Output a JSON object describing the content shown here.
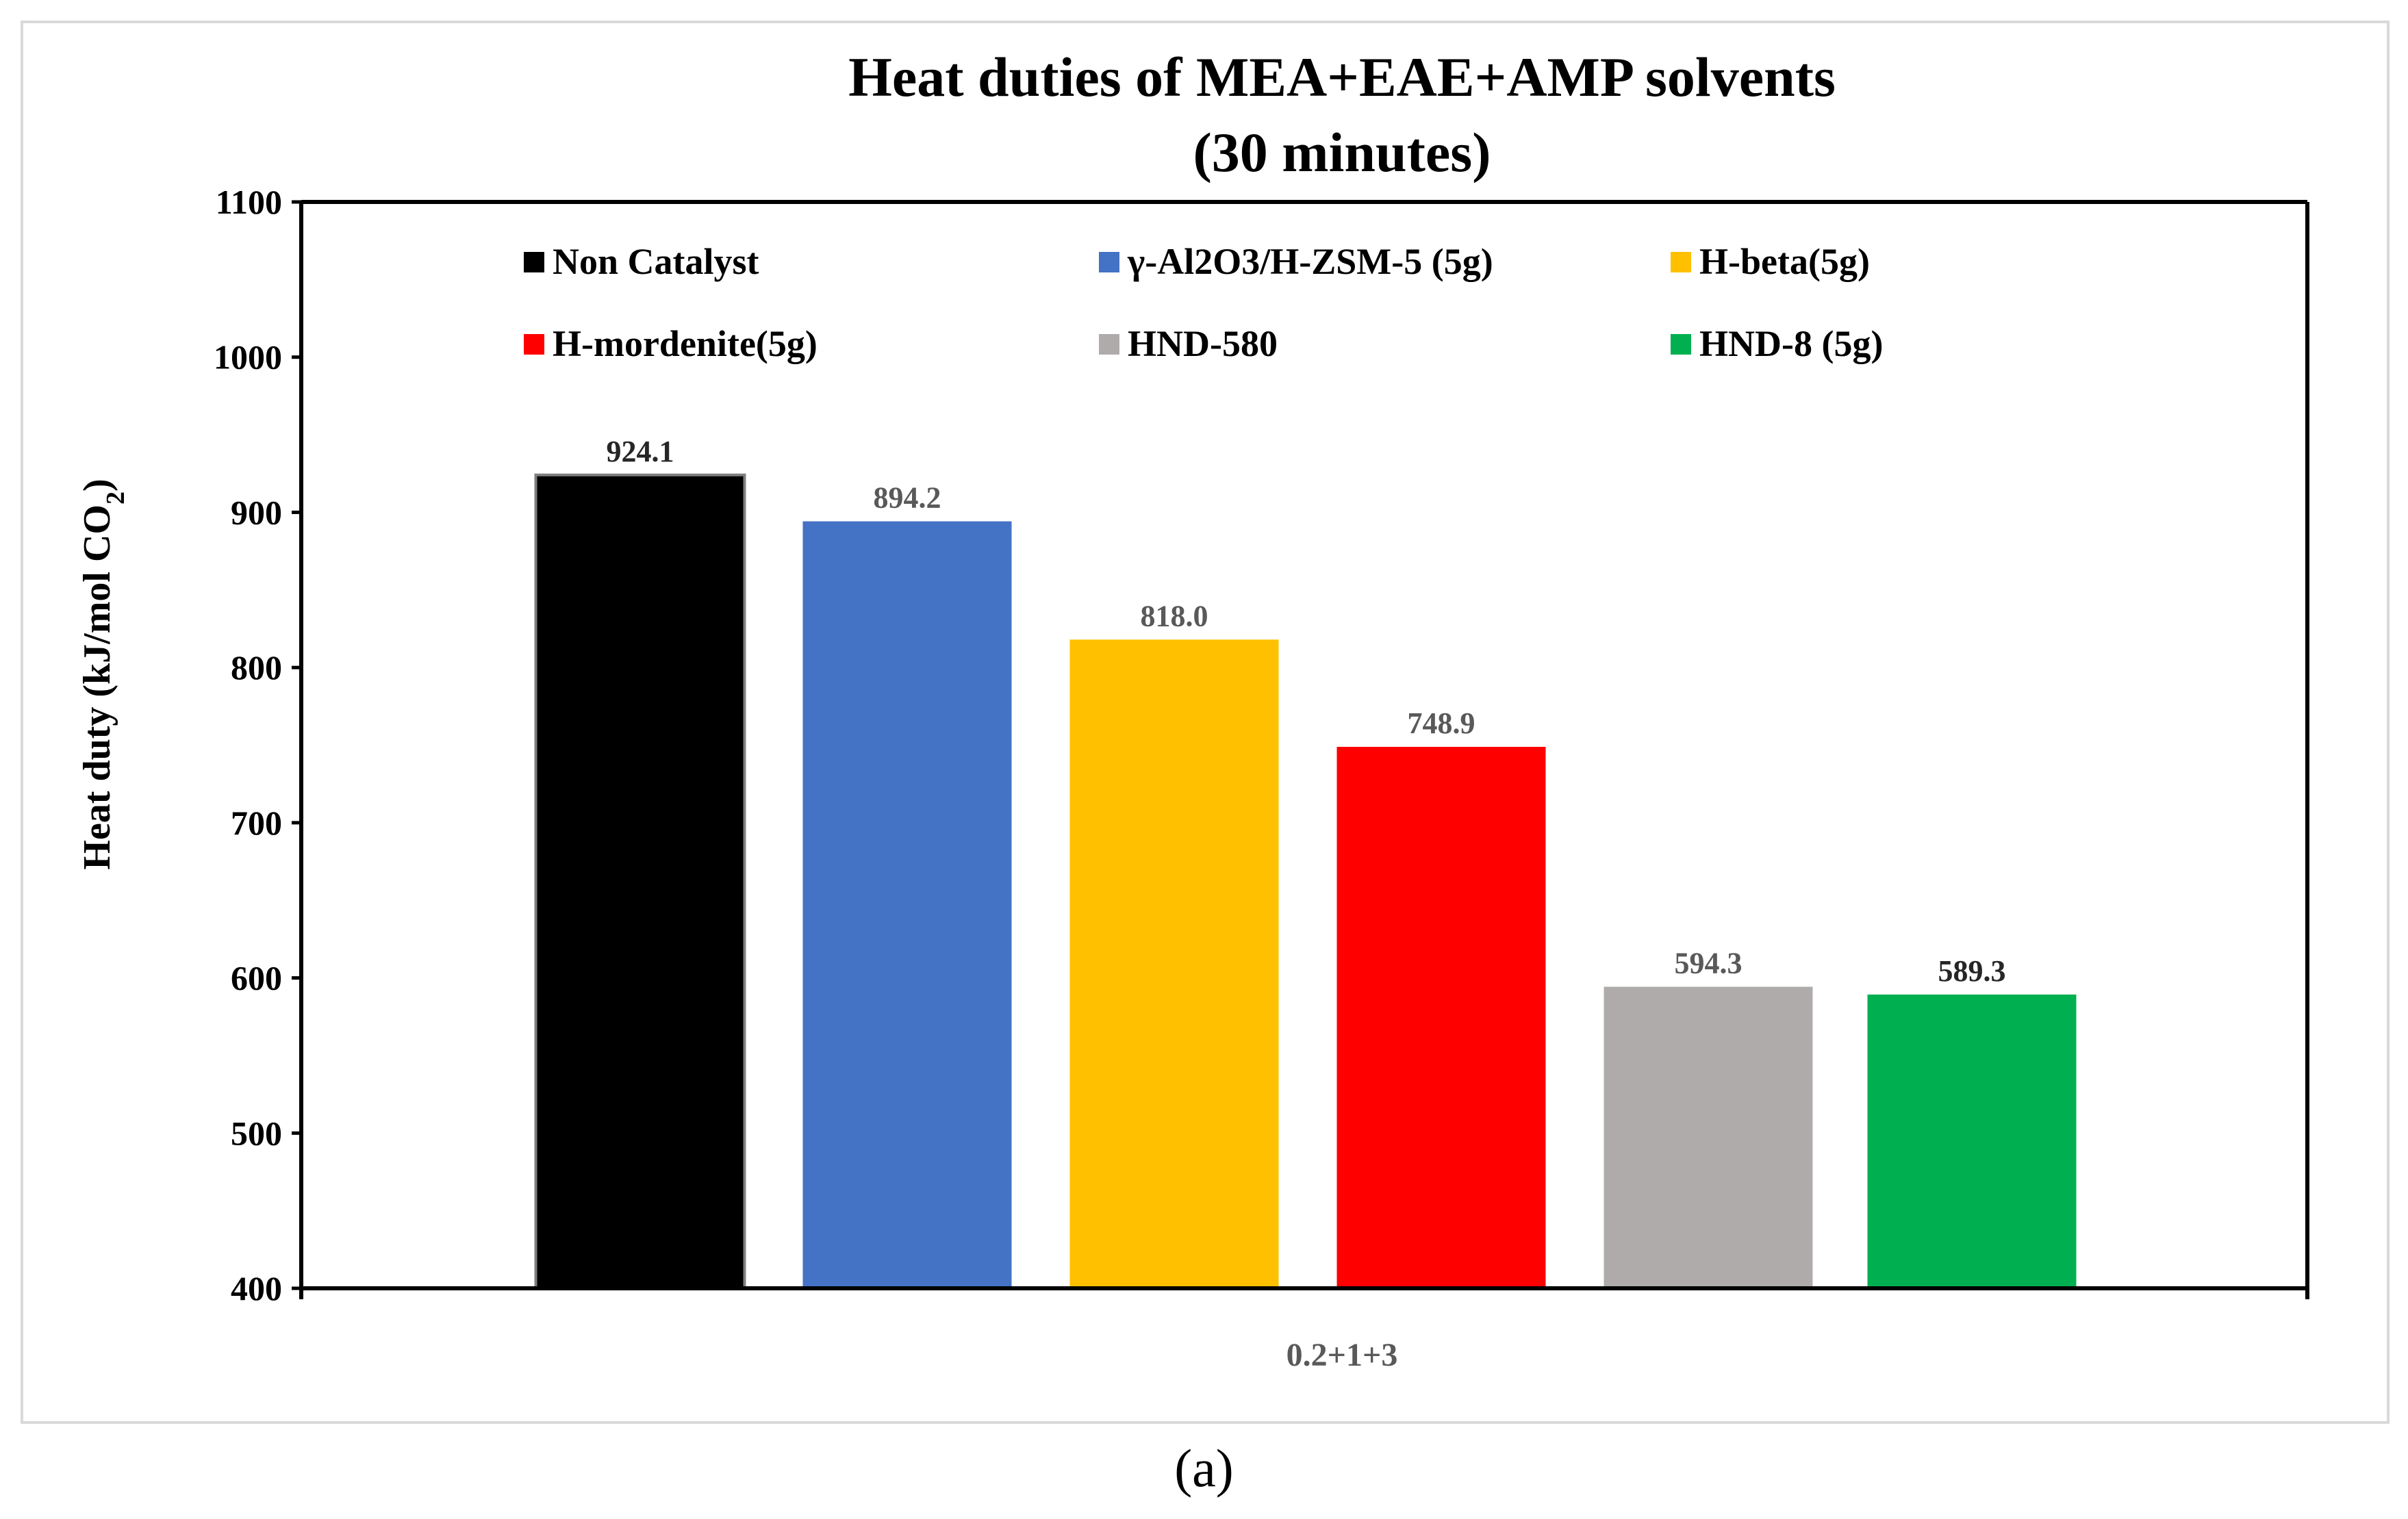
{
  "chart_data": {
    "type": "bar",
    "title": "Heat duties of MEA+EAE+AMP solvents",
    "subtitle": "(30 minutes)",
    "ylabel_main": "Heat duty (kJ/mol CO",
    "ylabel_sub": "2",
    "ylabel_end": ")",
    "category": "0.2+1+3",
    "ylim": [
      400,
      1100
    ],
    "yticks": [
      400,
      500,
      600,
      700,
      800,
      900,
      1000,
      1100
    ],
    "legend_position": "top",
    "series": [
      {
        "name": "Non Catalyst",
        "value": 924.1,
        "label": "924.1",
        "color": "#000000",
        "label_color": "#262626"
      },
      {
        "name": "γ-Al2O3/H-ZSM-5 (5g)",
        "value": 894.2,
        "label": "894.2",
        "color": "#4472c4",
        "label_color": "#595959"
      },
      {
        "name": "H-beta(5g)",
        "value": 818.0,
        "label": "818.0",
        "color": "#ffc000",
        "label_color": "#595959"
      },
      {
        "name": "H-mordenite(5g)",
        "value": 748.9,
        "label": "748.9",
        "color": "#ff0000",
        "label_color": "#595959"
      },
      {
        "name": "HND-580",
        "value": 594.3,
        "label": "594.3",
        "color": "#afabab",
        "label_color": "#595959"
      },
      {
        "name": "HND-8 (5g)",
        "value": 589.3,
        "label": "589.3",
        "color": "#00b050",
        "label_color": "#262626"
      }
    ]
  },
  "caption": "(a)"
}
